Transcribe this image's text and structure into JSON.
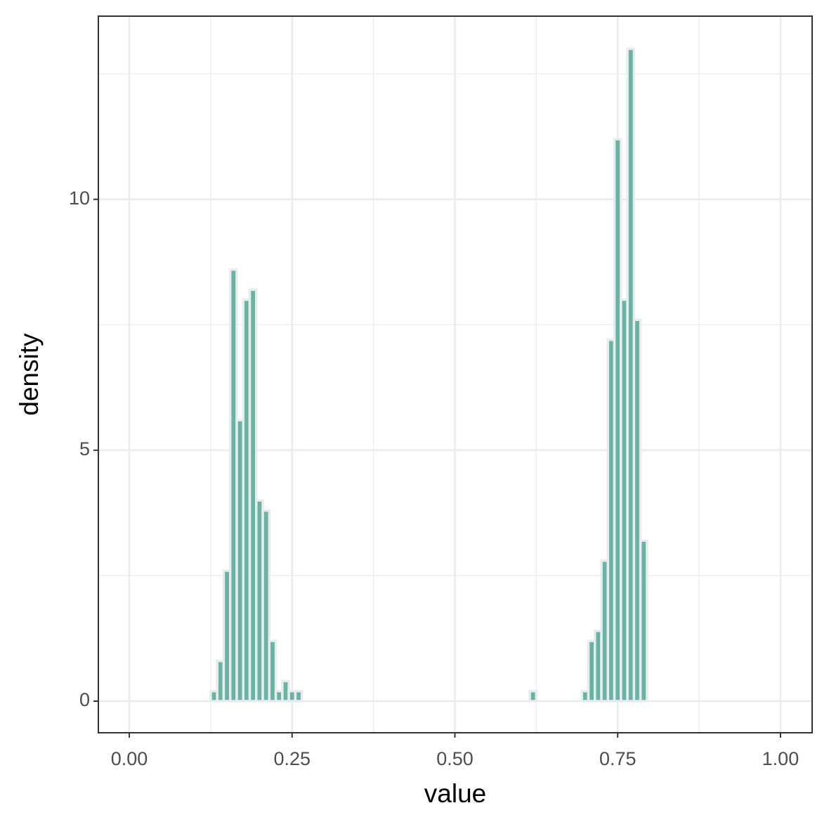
{
  "chart_data": {
    "type": "histogram",
    "xlabel": "value",
    "ylabel": "density",
    "bins": [
      0.125,
      0.135,
      0.145,
      0.155,
      0.165,
      0.175,
      0.185,
      0.195,
      0.205,
      0.215,
      0.225,
      0.235,
      0.245,
      0.255,
      0.265,
      0.275,
      0.285,
      0.295,
      0.305,
      0.315,
      0.325,
      0.335,
      0.345,
      0.355,
      0.365,
      0.375,
      0.385,
      0.395,
      0.405,
      0.415,
      0.425,
      0.435,
      0.445,
      0.455,
      0.465,
      0.475,
      0.485,
      0.495,
      0.505,
      0.515,
      0.525,
      0.535,
      0.545,
      0.555,
      0.565,
      0.575,
      0.585,
      0.595,
      0.605,
      0.615,
      0.625,
      0.635,
      0.645,
      0.655,
      0.665,
      0.675,
      0.685,
      0.695,
      0.705,
      0.715,
      0.725,
      0.735,
      0.745,
      0.755,
      0.765,
      0.775,
      0.785,
      0.795
    ],
    "values": [
      0.2,
      0.8,
      2.6,
      8.6,
      5.6,
      8.0,
      8.2,
      4.0,
      3.8,
      1.2,
      0.2,
      0.4,
      0.2,
      0.2,
      0,
      0,
      0,
      0,
      0,
      0,
      0,
      0,
      0,
      0,
      0,
      0,
      0,
      0,
      0,
      0,
      0,
      0,
      0,
      0,
      0,
      0,
      0,
      0,
      0,
      0,
      0,
      0,
      0,
      0,
      0,
      0,
      0,
      0,
      0,
      0.2,
      0,
      0,
      0,
      0,
      0,
      0,
      0,
      0.2,
      1.2,
      1.4,
      2.8,
      7.2,
      11.2,
      8.0,
      13.0,
      7.6,
      3.2
    ],
    "color": "#69b3a2",
    "edgecolor": "#e9ecef",
    "xlim": [
      -0.0475,
      1.0486
    ],
    "ylim": [
      -0.63,
      13.65
    ],
    "xticks": [
      {
        "value": 0,
        "label": "0.00"
      },
      {
        "value": 0.25,
        "label": "0.25"
      },
      {
        "value": 0.5,
        "label": "0.50"
      },
      {
        "value": 0.75,
        "label": "0.75"
      },
      {
        "value": 1,
        "label": "1.00"
      }
    ],
    "yticks": [
      0,
      5,
      10
    ],
    "grid": true
  }
}
